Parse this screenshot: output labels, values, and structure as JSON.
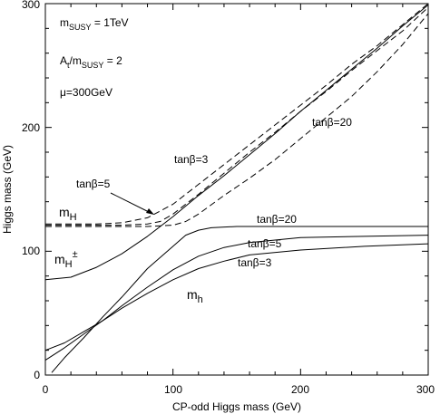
{
  "chart_data": {
    "type": "line",
    "xlabel": "CP-odd Higgs mass (GeV)",
    "ylabel": "Higgs mass (GeV)",
    "xlim": [
      0,
      300
    ],
    "ylim": [
      0,
      300
    ],
    "x_ticks": [
      "0",
      "100",
      "200",
      "300"
    ],
    "y_ticks": [
      "0",
      "100",
      "200",
      "300"
    ],
    "grid": false,
    "legend": "none",
    "params": {
      "msusy_main": "m",
      "msusy_sub": "SUSY",
      "msusy_value": " = 1TeV",
      "a_main": "A",
      "a_sub": "t",
      "a_div": "/m",
      "a_sub2": "SUSY",
      "a_value": " = 2",
      "mu_text": "μ=300GeV"
    },
    "labels": {
      "tb20_H": "tanβ=20",
      "tb3_H": "tanβ=3",
      "tb5_H": "tanβ=5",
      "tb20_h": "tanβ=20",
      "tb5_h": "tanβ=5",
      "tb3_h": "tanβ=3",
      "mH_main": "m",
      "mH_sub": "H",
      "mHpm_main": "m",
      "mHpm_sub": "H",
      "mHpm_sup": "±",
      "mh_main": "m",
      "mh_sub": "h"
    },
    "series": [
      {
        "group": "m_H",
        "tanb": "3",
        "style": "dashed",
        "points": [
          [
            0,
            122
          ],
          [
            20,
            122
          ],
          [
            40,
            122
          ],
          [
            60,
            123
          ],
          [
            80,
            127
          ],
          [
            100,
            138
          ],
          [
            120,
            154
          ],
          [
            140,
            170
          ],
          [
            160,
            186
          ],
          [
            180,
            202
          ],
          [
            200,
            218
          ],
          [
            220,
            234
          ],
          [
            240,
            251
          ],
          [
            260,
            266
          ],
          [
            280,
            283
          ],
          [
            300,
            300
          ]
        ]
      },
      {
        "group": "m_H",
        "tanb": "5",
        "style": "dashed",
        "points": [
          [
            0,
            121
          ],
          [
            20,
            121
          ],
          [
            40,
            121
          ],
          [
            60,
            121
          ],
          [
            80,
            122
          ],
          [
            90,
            124
          ],
          [
            100,
            130
          ],
          [
            120,
            146
          ],
          [
            140,
            163
          ],
          [
            160,
            180
          ],
          [
            180,
            196
          ],
          [
            200,
            213
          ],
          [
            220,
            229
          ],
          [
            240,
            246
          ],
          [
            260,
            262
          ],
          [
            280,
            278
          ],
          [
            300,
            297
          ]
        ]
      },
      {
        "group": "m_H",
        "tanb": "20",
        "style": "dashed",
        "points": [
          [
            0,
            120
          ],
          [
            20,
            120
          ],
          [
            40,
            120
          ],
          [
            60,
            120
          ],
          [
            80,
            120
          ],
          [
            100,
            121
          ],
          [
            110,
            124
          ],
          [
            120,
            130
          ],
          [
            140,
            145
          ],
          [
            160,
            159
          ],
          [
            180,
            174
          ],
          [
            200,
            191
          ],
          [
            220,
            208
          ],
          [
            240,
            225
          ],
          [
            260,
            245
          ],
          [
            280,
            267
          ],
          [
            300,
            292
          ]
        ]
      },
      {
        "group": "m_H±",
        "tanb": "",
        "style": "solid",
        "points": [
          [
            0,
            77
          ],
          [
            20,
            79
          ],
          [
            40,
            87
          ],
          [
            60,
            98
          ],
          [
            80,
            112
          ],
          [
            100,
            128
          ],
          [
            120,
            145
          ],
          [
            140,
            161
          ],
          [
            160,
            178
          ],
          [
            180,
            195
          ],
          [
            200,
            213
          ],
          [
            220,
            230
          ],
          [
            240,
            247
          ],
          [
            260,
            264
          ],
          [
            280,
            282
          ],
          [
            300,
            299
          ]
        ]
      },
      {
        "group": "m_h",
        "tanb": "20",
        "style": "solid",
        "points": [
          [
            5,
            2
          ],
          [
            15,
            14
          ],
          [
            30,
            30
          ],
          [
            45,
            47
          ],
          [
            60,
            63
          ],
          [
            80,
            86
          ],
          [
            100,
            104
          ],
          [
            110,
            113
          ],
          [
            120,
            117
          ],
          [
            130,
            119
          ],
          [
            150,
            120
          ],
          [
            200,
            120
          ],
          [
            250,
            120
          ],
          [
            300,
            120
          ]
        ]
      },
      {
        "group": "m_h",
        "tanb": "5",
        "style": "solid",
        "points": [
          [
            0,
            12
          ],
          [
            15,
            22
          ],
          [
            30,
            33
          ],
          [
            45,
            44
          ],
          [
            60,
            56
          ],
          [
            80,
            71
          ],
          [
            100,
            85
          ],
          [
            120,
            96
          ],
          [
            140,
            103
          ],
          [
            160,
            107
          ],
          [
            200,
            111
          ],
          [
            250,
            112
          ],
          [
            300,
            113
          ]
        ]
      },
      {
        "group": "m_h",
        "tanb": "3",
        "style": "solid",
        "points": [
          [
            0,
            20
          ],
          [
            15,
            26
          ],
          [
            30,
            35
          ],
          [
            45,
            44
          ],
          [
            60,
            54
          ],
          [
            80,
            66
          ],
          [
            100,
            77
          ],
          [
            120,
            86
          ],
          [
            140,
            92
          ],
          [
            160,
            97
          ],
          [
            200,
            101
          ],
          [
            250,
            104
          ],
          [
            300,
            106
          ]
        ]
      }
    ]
  }
}
